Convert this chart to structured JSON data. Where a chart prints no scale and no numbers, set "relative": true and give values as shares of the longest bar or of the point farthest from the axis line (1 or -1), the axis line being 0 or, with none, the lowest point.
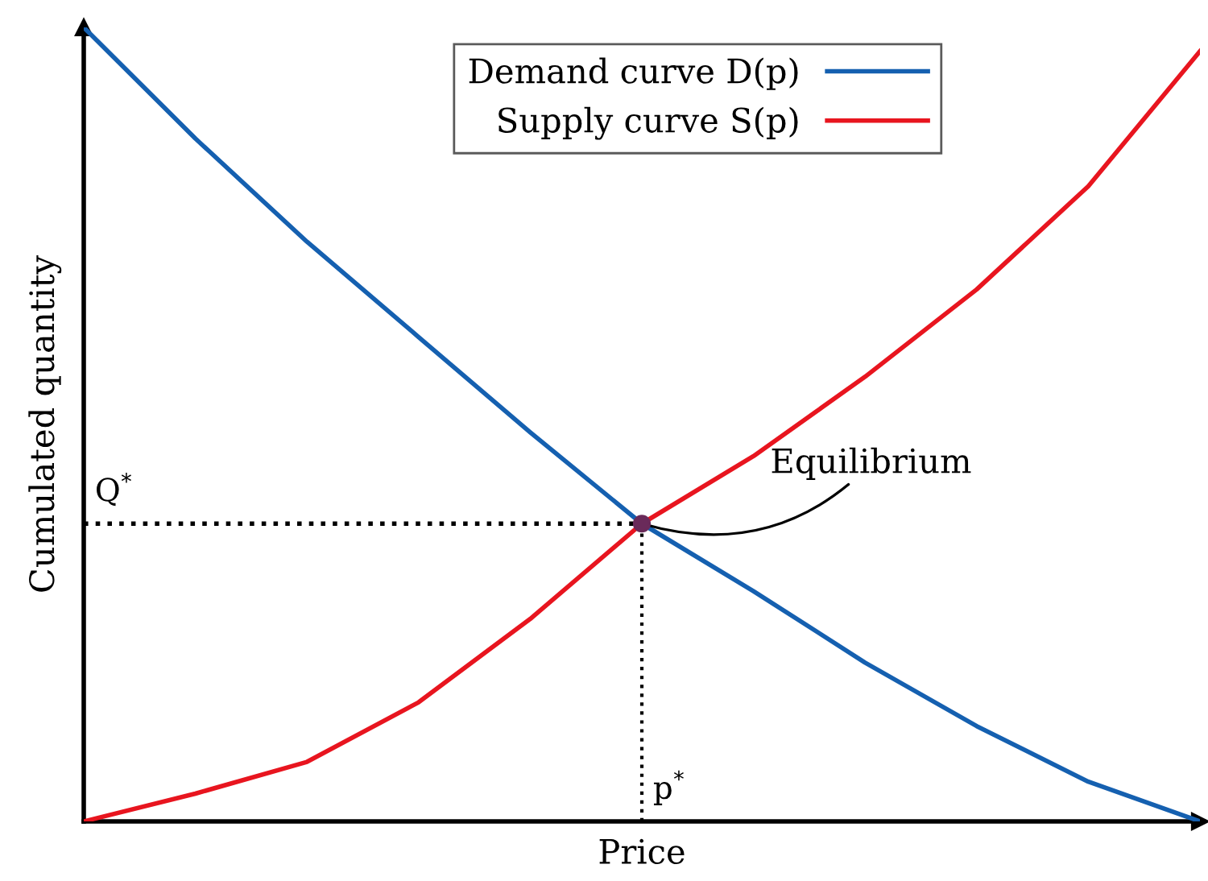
{
  "chart_data": {
    "type": "line",
    "relative": true,
    "xlabel": "Price",
    "ylabel": "Cumulated quantity",
    "legend": "top",
    "marker": "none",
    "line_style": "solid",
    "categories": [
      null,
      null,
      null,
      null,
      null,
      null,
      null,
      null,
      null,
      null,
      null
    ],
    "series": [
      {
        "name": "Demand curve D(p)",
        "color": "#1560b0",
        "values": [
          1,
          0.86,
          0.73,
          0.61,
          0.49,
          0.375,
          0.29,
          0.2,
          0.12,
          0.05,
          0
        ]
      },
      {
        "name": "Supply curve S(p)",
        "color": "#e8151f",
        "values": [
          0,
          0.035,
          0.075,
          0.15,
          0.255,
          0.375,
          0.46,
          0.56,
          0.67,
          0.8,
          0.97
        ]
      }
    ],
    "ref_lines": [
      {
        "axis": "y",
        "value": 0.375,
        "label": "Q$^{*}$",
        "line_style": "dotted",
        "color": "#000000"
      }
    ],
    "annotations": [
      "Equilibrium",
      "p$^{*}$"
    ]
  }
}
